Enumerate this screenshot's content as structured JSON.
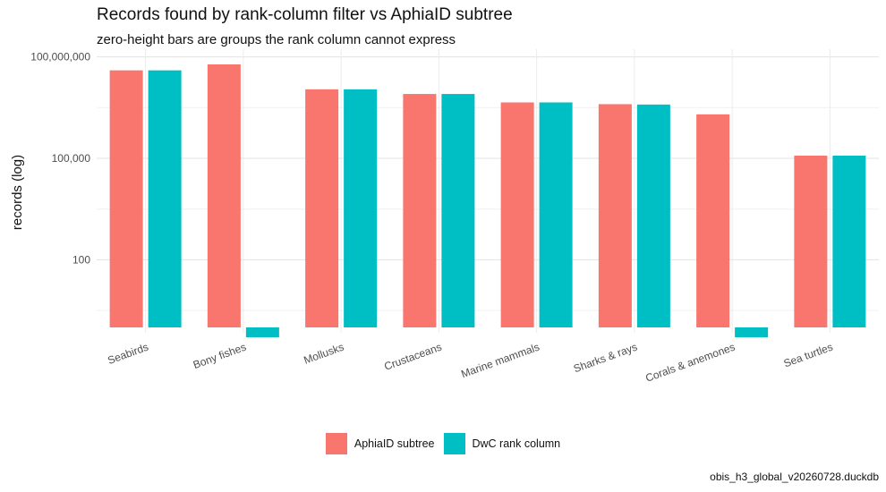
{
  "chart_data": {
    "type": "bar",
    "title": "Records found by rank-column filter vs AphiaID subtree",
    "subtitle": "zero-height bars are groups the rank column cannot express",
    "ylabel": "records (log)",
    "xlabel": "",
    "yscale": "log10",
    "ylim": [
      1,
      200000000
    ],
    "yticks": [
      {
        "value": 100,
        "label": "100"
      },
      {
        "value": 100000,
        "label": "100,000"
      },
      {
        "value": 100000000,
        "label": "100,000,000"
      }
    ],
    "categories": [
      "Seabirds",
      "Bony fishes",
      "Mollusks",
      "Crustaceans",
      "Marine mammals",
      "Sharks & rays",
      "Corals & anemones",
      "Sea turtles"
    ],
    "series": [
      {
        "name": "AphiaID subtree",
        "color": "#F8766D",
        "values": [
          40000000,
          60000000,
          11000000,
          8000000,
          4500000,
          4000000,
          2000000,
          120000
        ]
      },
      {
        "name": "DwC rank column",
        "color": "#00BFC4",
        "values": [
          40000000,
          0,
          11000000,
          8000000,
          4500000,
          3900000,
          0,
          120000
        ]
      }
    ],
    "grid": true,
    "legend_position": "bottom",
    "caption": "obis_h3_global_v20260728.duckdb"
  }
}
